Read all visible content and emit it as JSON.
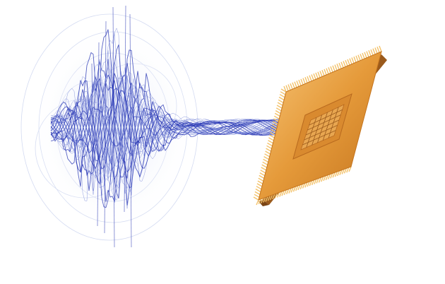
{
  "scene": {
    "subject": "signal-waveform-to-cpu-chip",
    "colors": {
      "background": "#ffffff",
      "wave": "#1f2db0",
      "wave_light": "#6f7fd6",
      "ring": "#c9d2ee",
      "chip_body": "#e59a3a",
      "chip_edge": "#c4741e",
      "chip_pin": "#f3c26a",
      "chip_shadow": "#9a5a1c",
      "die": "#b86a1f"
    },
    "icons": [
      "waveform-icon",
      "cpu-chip-icon"
    ]
  }
}
